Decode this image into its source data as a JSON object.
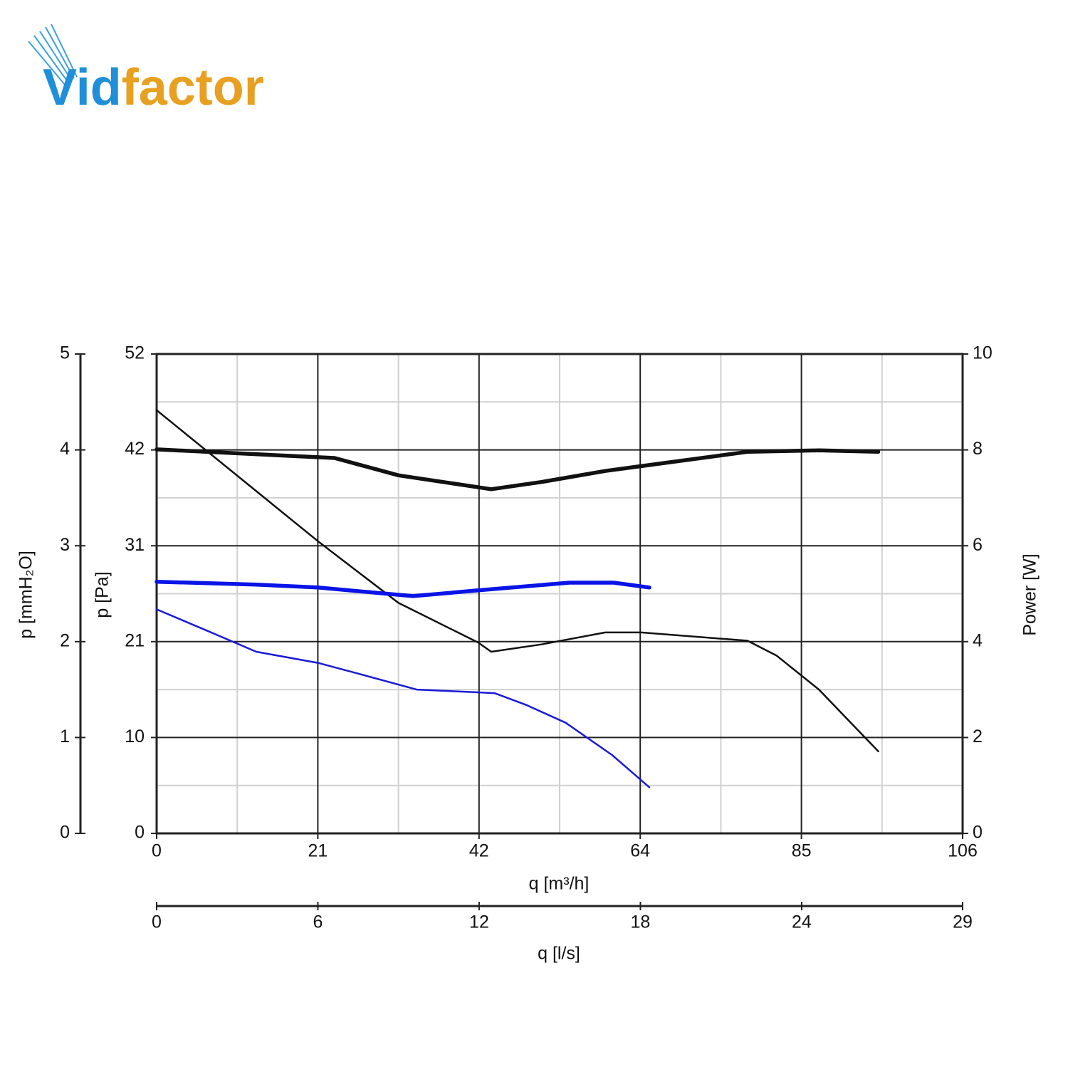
{
  "logo": [
    "Vid",
    "factor"
  ],
  "chart_data": {
    "type": "line",
    "xlabel": "q [m³/h]",
    "xlim": [
      0,
      106
    ],
    "xticks": [
      0,
      {
        "value": 21.2,
        "label": "21"
      },
      {
        "value": 42.4,
        "label": "42"
      },
      {
        "value": 63.6,
        "label": "64"
      },
      {
        "value": 84.8,
        "label": "85"
      },
      106
    ],
    "x2label": "q [l/s]",
    "x2lim": [
      0,
      29.44
    ],
    "x2ticks": [
      0,
      {
        "value": 5.89,
        "label": "6"
      },
      {
        "value": 11.78,
        "label": "12"
      },
      {
        "value": 17.67,
        "label": "18"
      },
      {
        "value": 23.56,
        "label": "24"
      },
      {
        "value": 29.44,
        "label": "29"
      }
    ],
    "ylabel": "p [Pa]",
    "ylim": [
      0,
      52
    ],
    "yticks": [
      0,
      {
        "value": 10.4,
        "label": "10"
      },
      {
        "value": 20.8,
        "label": "21"
      },
      {
        "value": 31.2,
        "label": "31"
      },
      {
        "value": 41.6,
        "label": "42"
      },
      52
    ],
    "y2label": "Power [W]",
    "y2lim": [
      0,
      10
    ],
    "y2ticks": [
      0,
      2,
      4,
      6,
      8,
      10
    ],
    "y3label": "p [mmH₂O]",
    "y3lim": [
      0,
      5
    ],
    "y3ticks": [
      0,
      1,
      2,
      3,
      4,
      5
    ],
    "grid": true,
    "minor_grid": true,
    "series": [
      {
        "color": "#111111",
        "width": 2.5,
        "x": [
          0,
          21.2,
          31.8,
          42.3,
          44.0,
          50.6,
          59.0,
          63.7,
          77.7,
          81.5,
          87.1,
          94.9
        ],
        "values": [
          45.9,
          31.7,
          25.0,
          20.7,
          19.7,
          20.5,
          21.8,
          21.8,
          20.9,
          19.3,
          15.6,
          8.9
        ]
      },
      {
        "color": "#1a1ad8",
        "width": 2.5,
        "x": [
          0,
          6.6,
          13.1,
          21.2,
          26.2,
          34.2,
          42.3,
          44.5,
          48.7,
          53.8,
          59.9,
          64.8
        ],
        "values": [
          24.3,
          22.0,
          19.7,
          18.5,
          17.4,
          15.6,
          15.3,
          15.2,
          13.9,
          12.0,
          8.5,
          5.0
        ]
      },
      {
        "color": "#111111",
        "width": 5.5,
        "axis": "y2",
        "x": [
          0,
          23.4,
          31.8,
          44.0,
          50.6,
          59.0,
          77.7,
          87.1,
          94.9
        ],
        "values": [
          8.01,
          7.83,
          7.47,
          7.18,
          7.33,
          7.56,
          7.96,
          7.99,
          7.96
        ]
      },
      {
        "color": "#0a14e6",
        "width": 5.5,
        "axis": "y2",
        "x": [
          0,
          13.1,
          21.2,
          33.7,
          42.3,
          54.3,
          60.1,
          64.8
        ],
        "values": [
          5.25,
          5.19,
          5.13,
          4.95,
          5.07,
          5.23,
          5.23,
          5.13
        ]
      }
    ]
  }
}
